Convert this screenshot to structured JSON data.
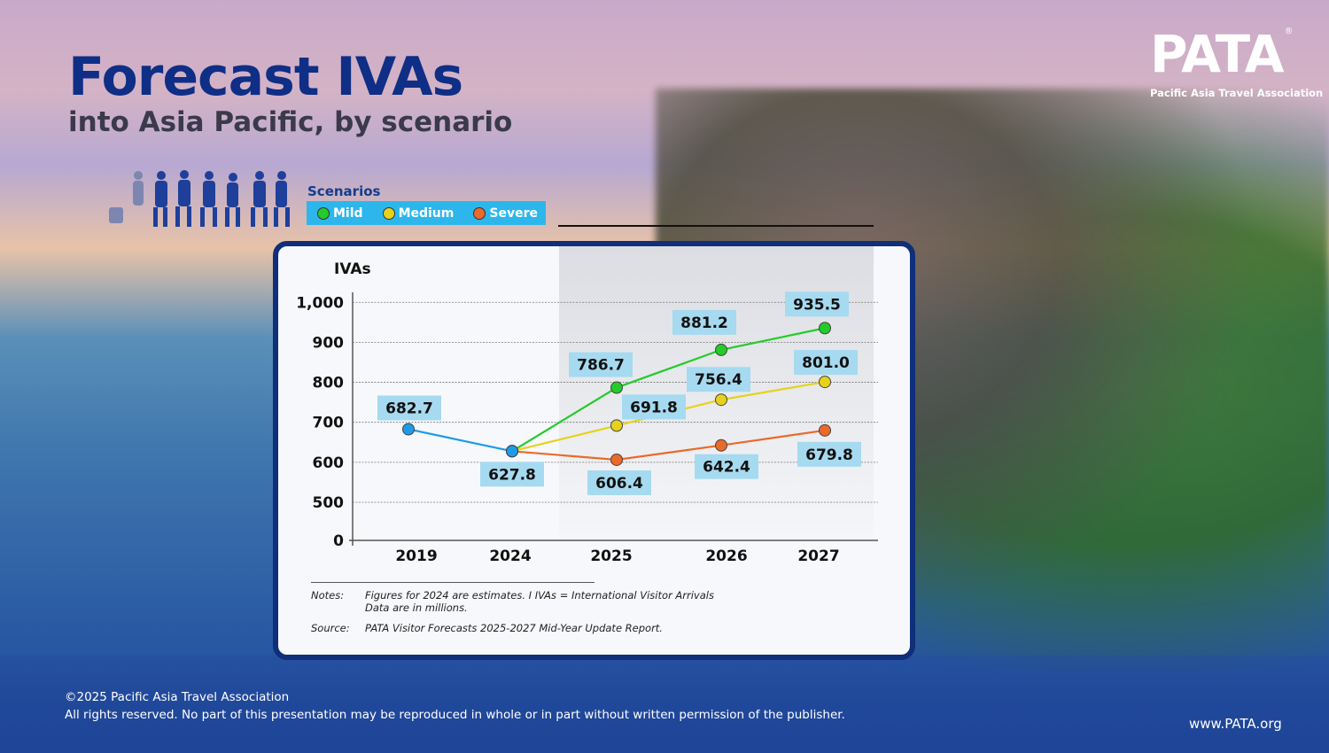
{
  "header": {
    "title": "Forecast IVAs",
    "subtitle": "into Asia Pacific, by scenario"
  },
  "logo": {
    "mark": "PATA",
    "registered": "®",
    "name": "Pacific Asia Travel Association"
  },
  "legend": {
    "title": "Scenarios",
    "items": [
      {
        "label": "Mild",
        "color": "#22cc2a"
      },
      {
        "label": "Medium",
        "color": "#e6d21c"
      },
      {
        "label": "Severe",
        "color": "#ea6a2a"
      }
    ]
  },
  "chart_data": {
    "type": "line",
    "ylabel": "IVAs",
    "x": [
      "2019",
      "2024",
      "2025",
      "2026",
      "2027"
    ],
    "y_ticks": [
      "0",
      "500",
      "600",
      "700",
      "800",
      "900",
      "1,000"
    ],
    "ylim": [
      0,
      1000
    ],
    "y_axis_break": "between 0 and 500",
    "grid": true,
    "forecast_shaded_range": [
      "2025",
      "2027"
    ],
    "series": [
      {
        "key": "baseline",
        "color": "#1e9be8",
        "points": [
          [
            "2019",
            682.7
          ],
          [
            "2024",
            627.8
          ]
        ]
      },
      {
        "name": "Mild",
        "color": "#22cc2a",
        "points": [
          [
            "2024",
            627.8
          ],
          [
            "2025",
            786.7
          ],
          [
            "2026",
            881.2
          ],
          [
            "2027",
            935.5
          ]
        ]
      },
      {
        "name": "Medium",
        "color": "#e6d21c",
        "points": [
          [
            "2024",
            627.8
          ],
          [
            "2025",
            691.8
          ],
          [
            "2026",
            756.4
          ],
          [
            "2027",
            801.0
          ]
        ]
      },
      {
        "name": "Severe",
        "color": "#ea6a2a",
        "points": [
          [
            "2024",
            627.8
          ],
          [
            "2025",
            606.4
          ],
          [
            "2026",
            642.4
          ],
          [
            "2027",
            679.8
          ]
        ]
      }
    ],
    "data_labels": [
      "682.7",
      "627.8",
      "786.7",
      "881.2",
      "935.5",
      "691.8",
      "756.4",
      "801.0",
      "606.4",
      "642.4",
      "679.8"
    ],
    "label_bg": "#a6daf0"
  },
  "notes": {
    "notes_label": "Notes:",
    "notes_line1": "Figures for 2024 are estimates. I IVAs = International Visitor Arrivals",
    "notes_line2": "Data are in millions.",
    "source_label": "Source:",
    "source_text": "PATA Visitor Forecasts 2025-2027 Mid-Year Update Report."
  },
  "footer": {
    "copyright": "©2025 Pacific Asia Travel Association",
    "rights": "All rights reserved. No part of this presentation may be reproduced in whole or in part without written permission of the publisher.",
    "url": "www.PATA.org"
  }
}
